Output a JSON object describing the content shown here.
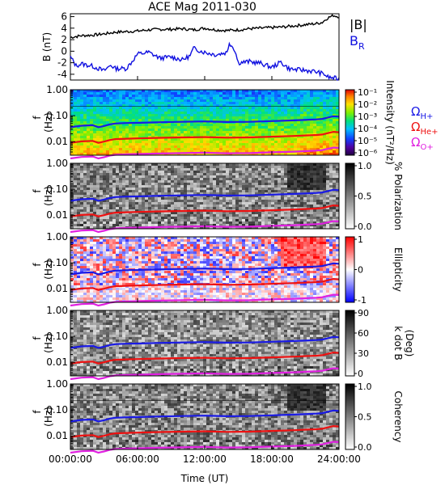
{
  "chart_data": {
    "type": "multi-panel-spectrogram",
    "title": "ACE Mag 2011-030",
    "xlabel": "Time (UT)",
    "xticks": [
      "00:00:00",
      "06:00:00",
      "12:00:00",
      "18:00:00",
      "24:00:00"
    ],
    "xlim_hours": [
      0,
      24
    ],
    "colors": {
      "B": "#000000",
      "BR": "#1010e0",
      "H": "#1a1ae6",
      "He": "#ee1111",
      "O": "#e020e0"
    },
    "timeseries_panel": {
      "ylabel": "B (nT)",
      "ylim": [
        -5,
        6.5
      ],
      "yticks": [
        "6",
        "4",
        "2",
        "0",
        "-2",
        "-4"
      ],
      "ytick_values": [
        6,
        4,
        2,
        0,
        -2,
        -4
      ],
      "legend": [
        "|B|",
        "B"
      ],
      "legend_sub": "R",
      "series": [
        {
          "name": "|B|",
          "t": [
            0,
            1,
            2,
            3,
            4,
            5,
            6,
            7,
            8,
            9,
            10,
            11,
            12,
            13,
            14,
            15,
            16,
            17,
            18,
            19,
            20,
            21,
            22,
            22.5,
            23,
            23.5,
            24
          ],
          "values": [
            2.4,
            2.7,
            2.8,
            3.0,
            3.3,
            3.4,
            3.5,
            3.7,
            3.8,
            3.8,
            3.9,
            3.7,
            4.0,
            3.7,
            3.6,
            3.7,
            3.9,
            4.0,
            4.1,
            4.2,
            4.4,
            4.6,
            4.8,
            5.0,
            5.8,
            6.2,
            6.0
          ]
        },
        {
          "name": "BR",
          "t": [
            0,
            0.5,
            1,
            2,
            3,
            3.6,
            4,
            5,
            5.5,
            6,
            7,
            8,
            9,
            10,
            10.7,
            11,
            12,
            13,
            14,
            14.2,
            14.7,
            15,
            16,
            17,
            18,
            18.8,
            19.5,
            20,
            21,
            22,
            22.7,
            23,
            24
          ],
          "values": [
            -1.0,
            -2.5,
            -2.2,
            -2.6,
            -3.4,
            -2.4,
            -3.0,
            -3.0,
            -1.8,
            -0.5,
            -0.2,
            -1.2,
            -1.0,
            -1.5,
            -0.8,
            0.5,
            -0.2,
            -0.6,
            -0.2,
            1.5,
            0.2,
            -2.0,
            -1.8,
            -2.1,
            -2.8,
            -1.9,
            -3.0,
            -3.2,
            -3.3,
            -3.6,
            -4.0,
            -4.5,
            -4.8
          ]
        }
      ]
    },
    "spectrogram_panels": [
      {
        "label": "intensity",
        "colorbar_title": "Intensity (nT²/Hz)",
        "colorbar_ticks": [
          "10⁻¹",
          "10⁻²",
          "10⁻³",
          "10⁻⁴",
          "10⁻⁵",
          "10⁻⁶"
        ],
        "colormap": "rainbow",
        "legend": [
          "Ω",
          "Ω",
          "Ω"
        ],
        "legend_sub": [
          "H+",
          "He+",
          "O+"
        ]
      },
      {
        "label": "polarization",
        "colorbar_title": "% Polarization",
        "colorbar_ticks": [
          "1.0",
          "0.5",
          "0.0"
        ],
        "colormap": "gray"
      },
      {
        "label": "ellipticity",
        "colorbar_title": "Ellipticity",
        "colorbar_ticks": [
          "1",
          "0",
          "-1"
        ],
        "colormap": "bwr"
      },
      {
        "label": "kdotb",
        "colorbar_title": "k dot B",
        "colorbar_title2": "(Deg)",
        "colorbar_ticks": [
          "90",
          "60",
          "30",
          "0"
        ],
        "colormap": "gray"
      },
      {
        "label": "coherency",
        "colorbar_title": "Coherency",
        "colorbar_ticks": [
          "1.0",
          "0.5",
          "0.0"
        ],
        "colormap": "gray"
      }
    ],
    "freq_axis": {
      "ylabel": "f",
      "ylabel2": "(Hz)",
      "yticks": [
        "1.00",
        "0.10",
        "0.01"
      ],
      "ytick_values": [
        1.0,
        0.1,
        0.01
      ],
      "ylim": [
        0.003,
        1.0
      ],
      "scale": "log"
    },
    "gyrofrequency_lines": {
      "t": [
        0,
        1,
        2,
        2.5,
        3,
        3.5,
        4,
        5,
        6,
        8,
        10,
        12,
        14,
        16,
        18,
        20,
        22,
        22.5,
        23,
        23.5,
        24
      ],
      "H+": [
        0.036,
        0.041,
        0.043,
        0.036,
        0.04,
        0.046,
        0.05,
        0.052,
        0.053,
        0.056,
        0.058,
        0.06,
        0.057,
        0.058,
        0.062,
        0.066,
        0.072,
        0.075,
        0.085,
        0.095,
        0.092
      ],
      "He+": [
        0.009,
        0.0102,
        0.0107,
        0.009,
        0.01,
        0.0115,
        0.0125,
        0.013,
        0.0133,
        0.014,
        0.0145,
        0.015,
        0.0142,
        0.0145,
        0.0155,
        0.0165,
        0.018,
        0.0188,
        0.0212,
        0.0238,
        0.023
      ],
      "O+": [
        0.00225,
        0.00256,
        0.00268,
        0.00225,
        0.0025,
        0.00288,
        0.00312,
        0.00325,
        0.00332,
        0.0035,
        0.00362,
        0.00375,
        0.00356,
        0.00362,
        0.00388,
        0.00412,
        0.0045,
        0.0047,
        0.0053,
        0.0059,
        0.00575
      ]
    },
    "grid": false,
    "legend_placement": "right"
  }
}
